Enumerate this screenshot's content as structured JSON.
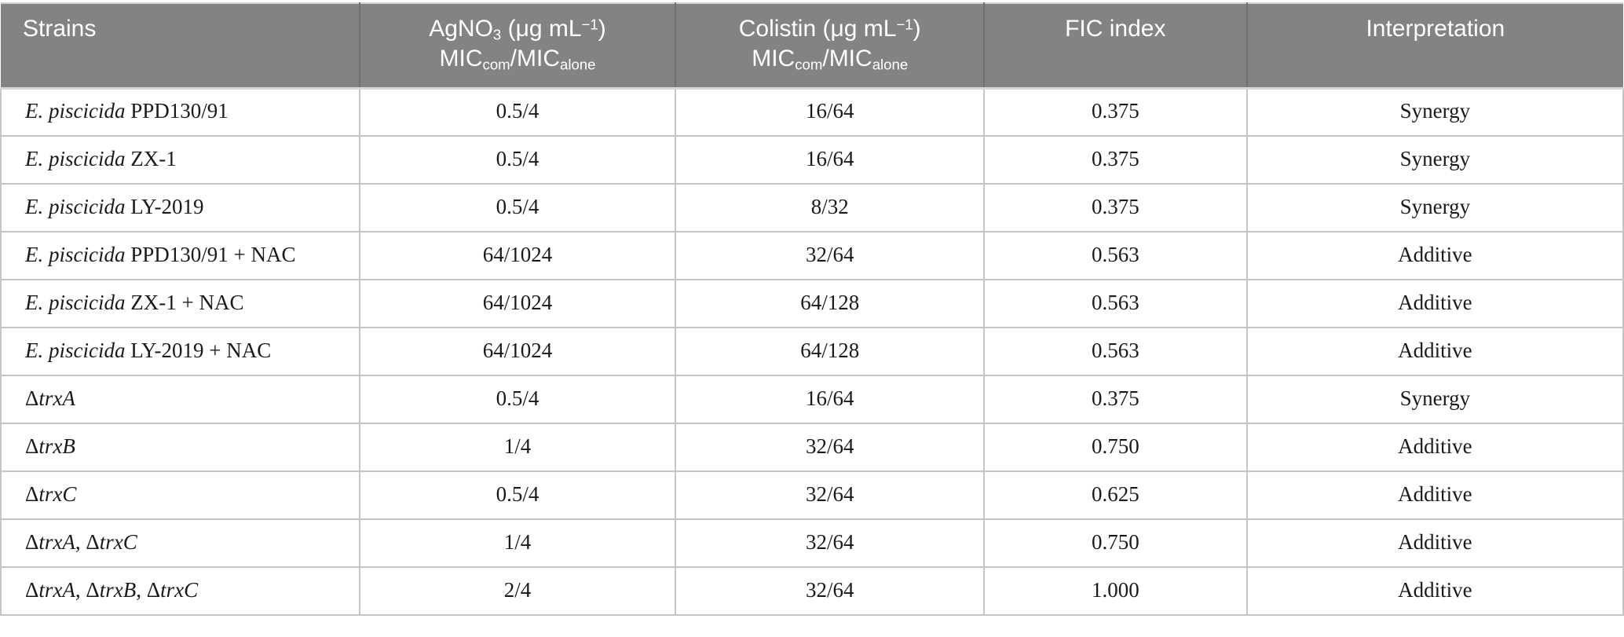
{
  "colors": {
    "header_bg": "#838383",
    "header_text": "#ffffff",
    "header_divider": "#717171",
    "body_border": "#c5c5c5",
    "body_text": "#1a1a1a"
  },
  "table": {
    "columns": [
      {
        "key": "strain",
        "align": "left",
        "width": "22.1%",
        "label_segments": [
          {
            "t": "Strains"
          }
        ]
      },
      {
        "key": "agno3",
        "align": "center",
        "width": "19.5%",
        "label_segments": [
          {
            "t": "AgNO"
          },
          {
            "t": "3",
            "s": "sub"
          },
          {
            "t": " (μg mL"
          },
          {
            "t": "−1",
            "s": "sup"
          },
          {
            "t": ")"
          },
          {
            "s": "br"
          },
          {
            "t": "MIC"
          },
          {
            "t": "com",
            "s": "sub"
          },
          {
            "t": "/MIC"
          },
          {
            "t": "alone",
            "s": "sub"
          }
        ]
      },
      {
        "key": "colistin",
        "align": "center",
        "width": "19.0%",
        "label_segments": [
          {
            "t": "Colistin (μg mL"
          },
          {
            "t": "−1",
            "s": "sup"
          },
          {
            "t": ")"
          },
          {
            "s": "br"
          },
          {
            "t": "MIC"
          },
          {
            "t": "com",
            "s": "sub"
          },
          {
            "t": "/MIC"
          },
          {
            "t": "alone",
            "s": "sub"
          }
        ]
      },
      {
        "key": "fic",
        "align": "center",
        "width": "16.2%",
        "label_segments": [
          {
            "t": "FIC index"
          }
        ]
      },
      {
        "key": "interpretation",
        "align": "center",
        "width": "23.2%",
        "label_segments": [
          {
            "t": "Interpretation"
          }
        ]
      }
    ],
    "rows": [
      {
        "strain": [
          {
            "t": "E. piscicida",
            "s": "i"
          },
          {
            "t": " PPD130/91"
          }
        ],
        "agno3": "0.5/4",
        "colistin": "16/64",
        "fic": "0.375",
        "interpretation": "Synergy"
      },
      {
        "strain": [
          {
            "t": "E. piscicida",
            "s": "i"
          },
          {
            "t": " ZX-1"
          }
        ],
        "agno3": "0.5/4",
        "colistin": "16/64",
        "fic": "0.375",
        "interpretation": "Synergy"
      },
      {
        "strain": [
          {
            "t": "E. piscicida",
            "s": "i"
          },
          {
            "t": " LY-2019"
          }
        ],
        "agno3": "0.5/4",
        "colistin": "8/32",
        "fic": "0.375",
        "interpretation": "Synergy"
      },
      {
        "strain": [
          {
            "t": "E. piscicida",
            "s": "i"
          },
          {
            "t": " PPD130/91 + NAC"
          }
        ],
        "agno3": "64/1024",
        "colistin": "32/64",
        "fic": "0.563",
        "interpretation": "Additive"
      },
      {
        "strain": [
          {
            "t": "E. piscicida",
            "s": "i"
          },
          {
            "t": " ZX-1 + NAC"
          }
        ],
        "agno3": "64/1024",
        "colistin": "64/128",
        "fic": "0.563",
        "interpretation": "Additive"
      },
      {
        "strain": [
          {
            "t": "E. piscicida",
            "s": "i"
          },
          {
            "t": " LY-2019 + NAC"
          }
        ],
        "agno3": "64/1024",
        "colistin": "64/128",
        "fic": "0.563",
        "interpretation": "Additive"
      },
      {
        "strain": [
          {
            "t": "Δ"
          },
          {
            "t": "trxA",
            "s": "i"
          }
        ],
        "agno3": "0.5/4",
        "colistin": "16/64",
        "fic": "0.375",
        "interpretation": "Synergy"
      },
      {
        "strain": [
          {
            "t": "Δ"
          },
          {
            "t": "trxB",
            "s": "i"
          }
        ],
        "agno3": "1/4",
        "colistin": "32/64",
        "fic": "0.750",
        "interpretation": "Additive"
      },
      {
        "strain": [
          {
            "t": "Δ"
          },
          {
            "t": "trxC",
            "s": "i"
          }
        ],
        "agno3": "0.5/4",
        "colistin": "32/64",
        "fic": "0.625",
        "interpretation": "Additive"
      },
      {
        "strain": [
          {
            "t": "Δ"
          },
          {
            "t": "trxA",
            "s": "i"
          },
          {
            "t": ", Δ"
          },
          {
            "t": "trxC",
            "s": "i"
          }
        ],
        "agno3": "1/4",
        "colistin": "32/64",
        "fic": "0.750",
        "interpretation": "Additive"
      },
      {
        "strain": [
          {
            "t": "Δ"
          },
          {
            "t": "trxA",
            "s": "i"
          },
          {
            "t": ", Δ"
          },
          {
            "t": "trxB",
            "s": "i"
          },
          {
            "t": ", Δ"
          },
          {
            "t": "trxC",
            "s": "i"
          }
        ],
        "agno3": "2/4",
        "colistin": "32/64",
        "fic": "1.000",
        "interpretation": "Additive"
      }
    ]
  }
}
